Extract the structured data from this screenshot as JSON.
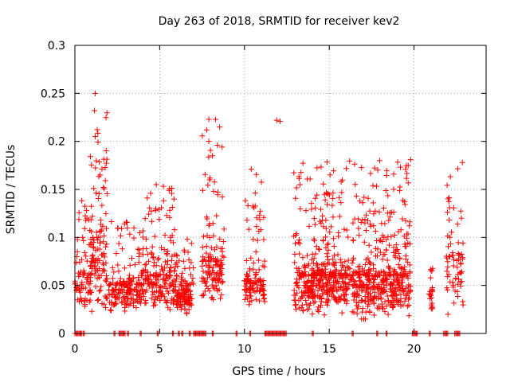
{
  "chart_data": {
    "type": "scatter",
    "title": "Day 263 of 2018, SRMTID for receiver kev2",
    "xlabel": "GPS time / hours",
    "ylabel": "SRMTID / TECUs",
    "xlim": [
      0,
      24.25
    ],
    "ylim": [
      0,
      0.3
    ],
    "x_ticks": [
      0,
      5,
      10,
      15,
      20
    ],
    "x_tick_labels": [
      "0",
      "5",
      "10",
      "15",
      "20"
    ],
    "y_ticks": [
      0,
      0.05,
      0.1,
      0.15,
      0.2,
      0.25,
      0.3
    ],
    "y_tick_labels": [
      "0",
      "0.05",
      "0.1",
      "0.15",
      "0.2",
      "0.25",
      "0.3"
    ],
    "grid": true,
    "marker": "+",
    "series": [
      {
        "name": "SRMTID",
        "color": "#ff0000",
        "clusters": [
          {
            "x_range": [
              0.0,
              1.0
            ],
            "y_median": 0.06,
            "y_range": [
              0.02,
              0.14
            ],
            "point_count": 80
          },
          {
            "x_range": [
              0.9,
              1.9
            ],
            "y_median": 0.09,
            "y_range": [
              0.01,
              0.25
            ],
            "point_count": 120
          },
          {
            "x_range": [
              2.0,
              4.0
            ],
            "y_median": 0.05,
            "y_range": [
              0.02,
              0.12
            ],
            "point_count": 190
          },
          {
            "x_range": [
              4.0,
              6.0
            ],
            "y_median": 0.06,
            "y_range": [
              0.02,
              0.155
            ],
            "point_count": 200
          },
          {
            "x_range": [
              6.0,
              7.0
            ],
            "y_median": 0.045,
            "y_range": [
              0.02,
              0.1
            ],
            "point_count": 120
          },
          {
            "x_range": [
              7.5,
              8.8
            ],
            "y_median": 0.075,
            "y_range": [
              0.03,
              0.225
            ],
            "point_count": 140
          },
          {
            "x_range": [
              10.0,
              11.2
            ],
            "y_median": 0.055,
            "y_range": [
              0.03,
              0.17
            ],
            "point_count": 120
          },
          {
            "x_range": [
              12.9,
              19.8
            ],
            "y_median": 0.06,
            "y_range": [
              0.015,
              0.18
            ],
            "point_count": 900
          },
          {
            "x_range": [
              20.9,
              21.1
            ],
            "y_median": 0.04,
            "y_range": [
              0.015,
              0.075
            ],
            "point_count": 25
          },
          {
            "x_range": [
              21.9,
              22.9
            ],
            "y_median": 0.08,
            "y_range": [
              0.02,
              0.18
            ],
            "point_count": 70
          }
        ],
        "notable_points": [
          {
            "x": 1.2,
            "y": 0.25
          },
          {
            "x": 1.15,
            "y": 0.232
          },
          {
            "x": 1.2,
            "y": 0.205
          },
          {
            "x": 7.9,
            "y": 0.223
          },
          {
            "x": 7.9,
            "y": 0.2
          },
          {
            "x": 11.9,
            "y": 0.222
          },
          {
            "x": 12.1,
            "y": 0.221
          },
          {
            "x": 19.8,
            "y": 0.181
          },
          {
            "x": 22.85,
            "y": 0.178
          },
          {
            "x": 4.8,
            "y": 0.155
          },
          {
            "x": 10.4,
            "y": 0.171
          }
        ],
        "zero_value_segments": [
          [
            0.0,
            0.3
          ],
          [
            0.35,
            0.45
          ],
          [
            0.5,
            0.6
          ],
          [
            2.3,
            2.4
          ],
          [
            2.6,
            3.0
          ],
          [
            3.1,
            3.2
          ],
          [
            3.85,
            3.95
          ],
          [
            4.85,
            4.95
          ],
          [
            5.75,
            5.85
          ],
          [
            6.1,
            6.2
          ],
          [
            6.3,
            6.4
          ],
          [
            6.75,
            6.85
          ],
          [
            7.0,
            7.75
          ],
          [
            8.1,
            8.2
          ],
          [
            9.5,
            9.6
          ],
          [
            10.3,
            10.4
          ],
          [
            11.2,
            12.5
          ],
          [
            14.0,
            14.1
          ],
          [
            16.35,
            16.45
          ],
          [
            17.8,
            17.9
          ],
          [
            18.35,
            18.45
          ],
          [
            19.9,
            20.2
          ],
          [
            20.9,
            21.0
          ],
          [
            21.75,
            22.0
          ],
          [
            22.4,
            22.7
          ]
        ]
      }
    ]
  }
}
